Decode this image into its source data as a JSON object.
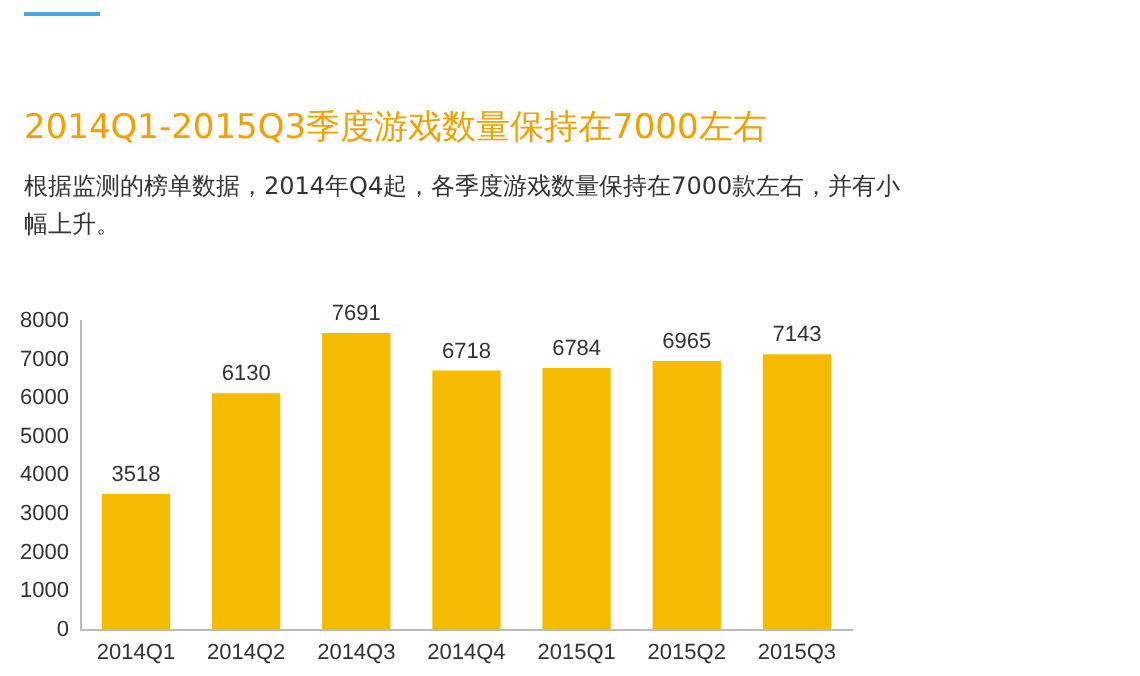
{
  "chart_data": {
    "type": "bar",
    "title": "2014Q1-2015Q3季度游戏数量保持在7000左右",
    "subtitle": "根据监测的榜单数据，2014年Q4起，各季度游戏数量保持在7000款左右，并有小幅上升。",
    "categories": [
      "2014Q1",
      "2014Q2",
      "2014Q3",
      "2014Q4",
      "2015Q1",
      "2015Q2",
      "2015Q3"
    ],
    "values": [
      3518,
      6130,
      7691,
      6718,
      6784,
      6965,
      7143
    ],
    "color": "#f5bb00",
    "ylim": [
      0,
      8000
    ],
    "yticks": [
      0,
      1000,
      2000,
      3000,
      4000,
      5000,
      6000,
      7000,
      8000
    ],
    "grid": false,
    "data_labels": true
  }
}
